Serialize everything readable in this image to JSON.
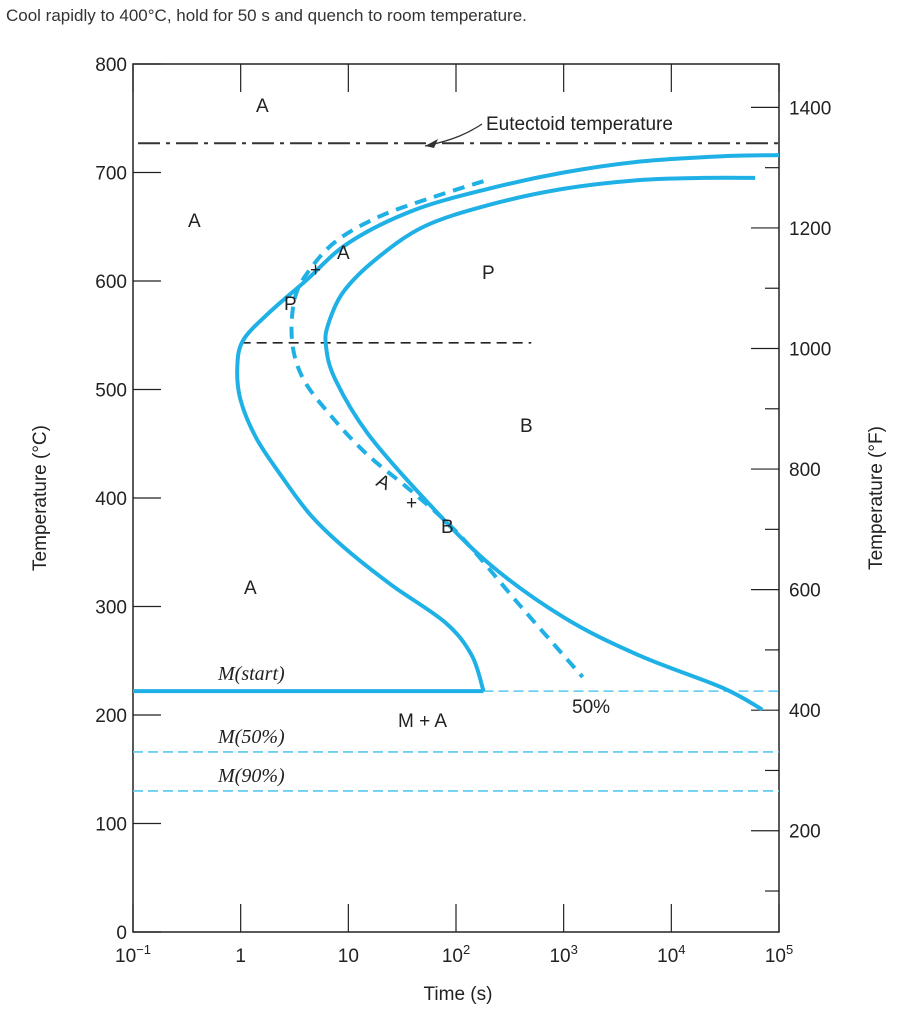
{
  "question": "Cool rapidly to 400°C, hold for 50 s and quench to room temperature.",
  "colors": {
    "curve": "#1fb1e6",
    "axis": "#222222",
    "eutectoid": "#333333"
  },
  "chart_data": {
    "type": "line",
    "xscale": "log",
    "xlim": [
      0.1,
      100000
    ],
    "ylim": [
      0,
      800
    ],
    "ylim_right_F": [
      32,
      1472
    ],
    "xlabel": "Time (s)",
    "ylabel": "Temperature (°C)",
    "ylabel_right": "Temperature (°F)",
    "x_ticks": [
      {
        "value": 0.1,
        "base": "10",
        "exp": "−1"
      },
      {
        "value": 1,
        "base": "1",
        "exp": ""
      },
      {
        "value": 10,
        "base": "10",
        "exp": ""
      },
      {
        "value": 100,
        "base": "10",
        "exp": "2"
      },
      {
        "value": 1000,
        "base": "10",
        "exp": "3"
      },
      {
        "value": 10000,
        "base": "10",
        "exp": "4"
      },
      {
        "value": 100000,
        "base": "10",
        "exp": "5"
      }
    ],
    "y_ticks": [
      "0",
      "100",
      "200",
      "300",
      "400",
      "500",
      "600",
      "700",
      "800"
    ],
    "y_ticks_right_F": [
      "200",
      "400",
      "600",
      "800",
      "1000",
      "1200",
      "1400"
    ],
    "eutectoid_temperature": 727,
    "eutectoid_label": "Eutectoid temperature",
    "series": [
      {
        "style": "solid",
        "x": [
          100000,
          30000,
          5000,
          1000,
          200,
          40,
          10,
          4,
          1.8,
          1.05,
          0.93,
          1.0,
          1.4,
          2.4,
          4.4,
          9,
          25,
          80,
          140,
          180
        ],
        "y": [
          716,
          715,
          710,
          700,
          685,
          665,
          635,
          600,
          570,
          545,
          520,
          490,
          455,
          420,
          385,
          355,
          320,
          285,
          255,
          222
        ]
      },
      {
        "style": "dashed",
        "x": [
          180,
          60,
          20,
          8,
          4.5,
          3.2,
          3.0,
          3.8,
          7,
          15,
          40,
          110,
          400,
          1500
        ],
        "y": [
          692,
          677,
          660,
          638,
          612,
          585,
          545,
          510,
          475,
          440,
          405,
          365,
          300,
          235
        ]
      },
      {
        "style": "solid",
        "x": [
          60000,
          20000,
          5000,
          1000,
          200,
          50,
          18,
          9,
          6.5,
          6.2,
          7.5,
          15,
          50,
          200,
          1000,
          5000,
          30000,
          70000
        ],
        "y": [
          695,
          695,
          693,
          685,
          670,
          650,
          620,
          590,
          560,
          540,
          510,
          460,
          400,
          340,
          290,
          255,
          225,
          205
        ]
      },
      {
        "style": "thick",
        "x": [
          0.1,
          180
        ],
        "y": [
          222,
          222
        ]
      }
    ],
    "reference_lines": [
      {
        "style": "dashed",
        "y": 543,
        "x": [
          1,
          500
        ]
      },
      {
        "style": "dashed-light",
        "y": 222,
        "x": [
          180,
          100000
        ]
      },
      {
        "style": "dashed-light",
        "y": 166,
        "x": [
          0.1,
          100000
        ]
      },
      {
        "style": "dashed-light",
        "y": 130,
        "x": [
          0.1,
          100000
        ]
      }
    ],
    "annotations": {
      "eutectoid": "Eutectoid temperature",
      "mstart": "M(start)",
      "m50": "M(50%)",
      "m90": "M(90%)",
      "ma": "M + A",
      "pct50": "50%",
      "regions": [
        "A",
        "A",
        "A",
        "P",
        "B",
        "A",
        "+",
        "P",
        "A",
        "+",
        "B"
      ]
    }
  }
}
